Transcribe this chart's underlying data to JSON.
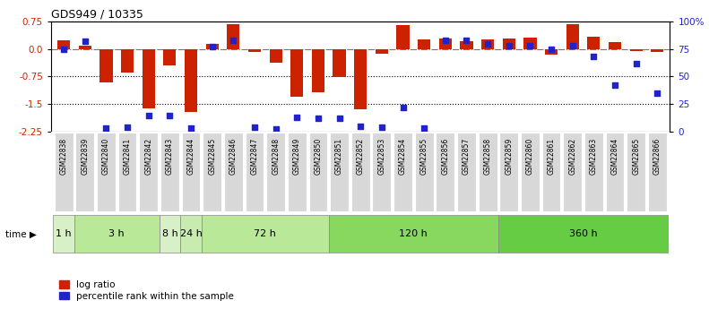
{
  "title": "GDS949 / 10335",
  "samples": [
    "GSM22838",
    "GSM22839",
    "GSM22840",
    "GSM22841",
    "GSM22842",
    "GSM22843",
    "GSM22844",
    "GSM22845",
    "GSM22846",
    "GSM22847",
    "GSM22848",
    "GSM22849",
    "GSM22850",
    "GSM22851",
    "GSM22852",
    "GSM22853",
    "GSM22854",
    "GSM22855",
    "GSM22856",
    "GSM22857",
    "GSM22858",
    "GSM22859",
    "GSM22860",
    "GSM22861",
    "GSM22862",
    "GSM22863",
    "GSM22864",
    "GSM22865",
    "GSM22866"
  ],
  "log_ratio": [
    0.25,
    0.1,
    -0.92,
    -0.64,
    -1.62,
    -0.44,
    -1.72,
    0.13,
    0.68,
    -0.07,
    -0.37,
    -1.3,
    -1.17,
    -0.77,
    -1.65,
    -0.13,
    0.65,
    0.27,
    0.29,
    0.22,
    0.26,
    0.3,
    0.32,
    -0.15,
    0.68,
    0.34,
    0.2,
    -0.05,
    -0.07
  ],
  "pct_rank": [
    75,
    82,
    3,
    4,
    14,
    14,
    3,
    77,
    83,
    4,
    2,
    13,
    12,
    12,
    5,
    4,
    22,
    3,
    83,
    83,
    80,
    78,
    78,
    75,
    78,
    68,
    42,
    62,
    35
  ],
  "time_groups": [
    {
      "label": "1 h",
      "start": 0,
      "end": 1,
      "color": "#d8f0c8"
    },
    {
      "label": "3 h",
      "start": 1,
      "end": 5,
      "color": "#b8e898"
    },
    {
      "label": "8 h",
      "start": 5,
      "end": 6,
      "color": "#d8f0c8"
    },
    {
      "label": "24 h",
      "start": 6,
      "end": 7,
      "color": "#c8ecb0"
    },
    {
      "label": "72 h",
      "start": 7,
      "end": 13,
      "color": "#b8e898"
    },
    {
      "label": "120 h",
      "start": 13,
      "end": 21,
      "color": "#88d860"
    },
    {
      "label": "360 h",
      "start": 21,
      "end": 29,
      "color": "#66cc44"
    }
  ],
  "bar_color": "#cc2200",
  "dot_color": "#2222cc",
  "ylim_left": [
    -2.25,
    0.75
  ],
  "ylim_right": [
    0,
    100
  ],
  "yticks_left": [
    0.75,
    0.0,
    -0.75,
    -1.5,
    -2.25
  ],
  "yticks_right": [
    100,
    75,
    50,
    25,
    0
  ],
  "legend_items": [
    "log ratio",
    "percentile rank within the sample"
  ],
  "legend_colors": [
    "#cc2200",
    "#2222cc"
  ],
  "fig_width": 7.91,
  "fig_height": 3.45
}
